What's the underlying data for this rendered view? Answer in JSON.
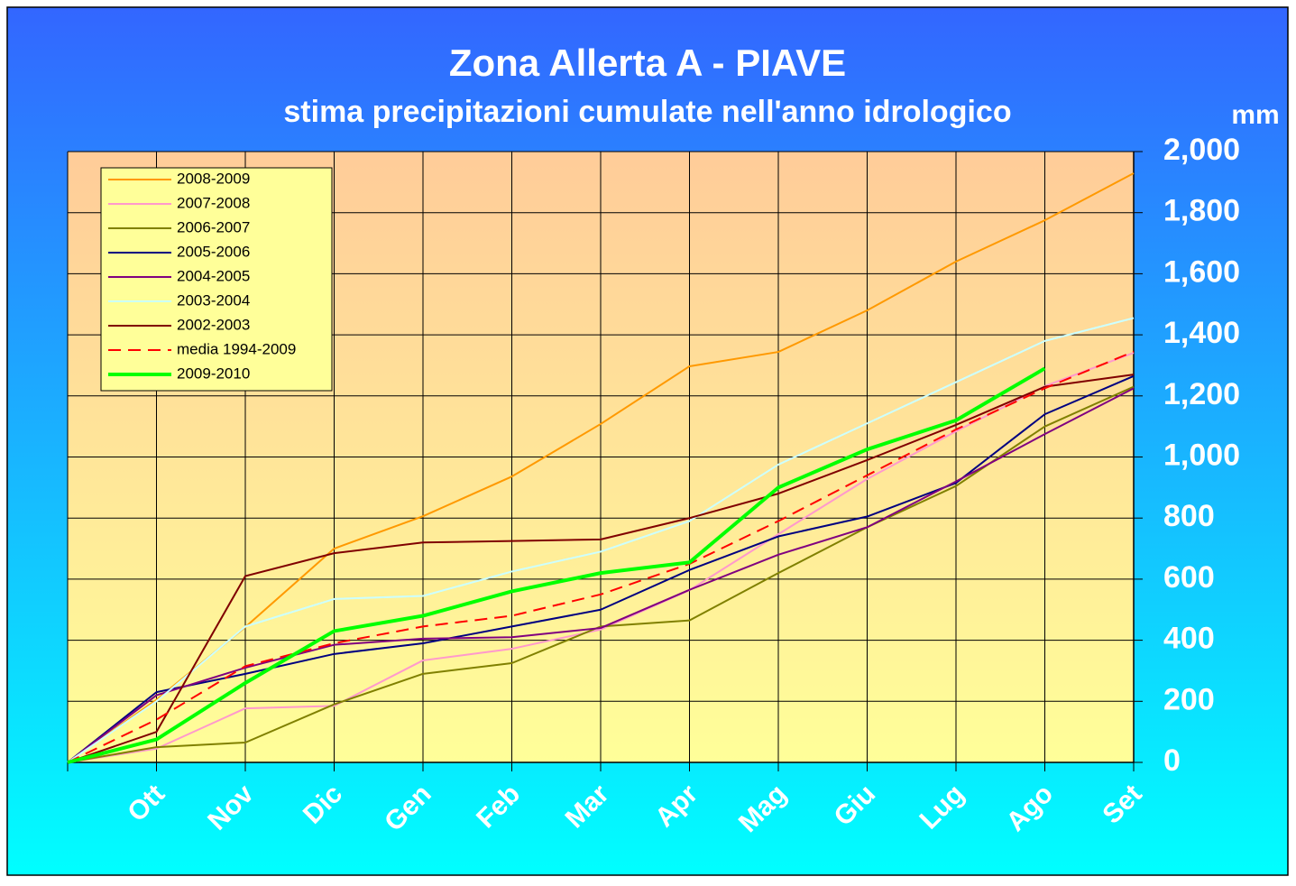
{
  "chart_data": {
    "type": "line",
    "title": "Zona Allerta A -   PIAVE",
    "subtitle": "stima precipitazioni cumulate nell'anno idrologico",
    "y_label": "mm",
    "categories": [
      null,
      "Ott",
      "Nov",
      "Dic",
      "Gen",
      "Feb",
      "Mar",
      "Apr",
      "Mag",
      "Giu",
      "Lug",
      "Ago",
      "Set"
    ],
    "series": [
      {
        "name": "2008-2009",
        "color": "#ff9900",
        "values": [
          0,
          205,
          443,
          700,
          806,
          936,
          1108,
          1297,
          1344,
          1480,
          1640,
          1775,
          1929
        ]
      },
      {
        "name": "2007-2008",
        "color": "#ff99cc",
        "values": [
          0,
          45,
          177,
          185,
          334,
          372,
          435,
          564,
          747,
          928,
          1084,
          1232,
          1341
        ]
      },
      {
        "name": "2006-2007",
        "color": "#808000",
        "values": [
          0,
          50,
          65,
          190,
          290,
          325,
          445,
          465,
          620,
          770,
          905,
          1100,
          1230
        ]
      },
      {
        "name": "2005-2006",
        "color": "#000080",
        "values": [
          0,
          230,
          290,
          355,
          390,
          445,
          500,
          630,
          740,
          805,
          915,
          1140,
          1265
        ]
      },
      {
        "name": "2004-2005",
        "color": "#800080",
        "values": [
          0,
          220,
          310,
          385,
          405,
          410,
          440,
          565,
          680,
          770,
          920,
          1075,
          1225
        ]
      },
      {
        "name": "2003-2004",
        "color": "#ccffff",
        "values": [
          0,
          200,
          445,
          535,
          545,
          625,
          690,
          790,
          975,
          1110,
          1245,
          1380,
          1455
        ]
      },
      {
        "name": "2002-2003",
        "color": "#800000",
        "values": [
          0,
          100,
          610,
          685,
          720,
          725,
          730,
          800,
          880,
          990,
          1105,
          1230,
          1270
        ]
      },
      {
        "name": "media 1994-2009",
        "color": "#ff0000",
        "dashed": true,
        "values": [
          0,
          140,
          315,
          390,
          445,
          480,
          550,
          650,
          790,
          940,
          1090,
          1225,
          1345
        ]
      },
      {
        "name": "2009-2010",
        "color": "#00ff00",
        "line_width": 4,
        "values": [
          0,
          75,
          260,
          430,
          480,
          560,
          620,
          655,
          900,
          1025,
          1120,
          1290,
          null
        ]
      }
    ],
    "ylim": [
      0,
      2000
    ],
    "yticks": [
      0,
      200,
      400,
      600,
      800,
      {
        "value": 1000,
        "label": "1,000"
      },
      {
        "value": 1200,
        "label": "1,200"
      },
      {
        "value": 1400,
        "label": "1,400"
      },
      {
        "value": 1600,
        "label": "1,600"
      },
      {
        "value": 1800,
        "label": "1,800"
      },
      {
        "value": 2000,
        "label": "2,000"
      }
    ],
    "grid": true,
    "legend": "upper left"
  }
}
